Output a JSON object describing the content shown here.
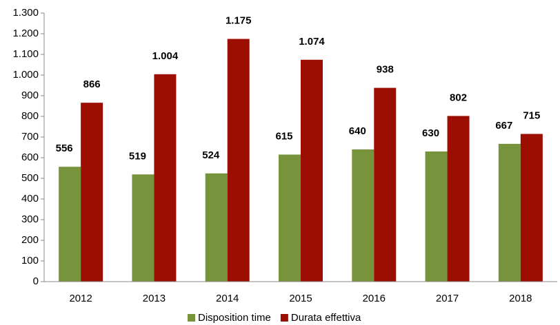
{
  "chart_data": {
    "type": "bar",
    "categories": [
      "2012",
      "2013",
      "2014",
      "2015",
      "2016",
      "2017",
      "2018"
    ],
    "series": [
      {
        "name": "Disposition time",
        "color": "#77933c",
        "values": [
          556,
          519,
          524,
          615,
          640,
          630,
          667
        ]
      },
      {
        "name": "Durata effettiva",
        "color": "#9c0d02",
        "values": [
          866,
          1004,
          1175,
          1074,
          938,
          802,
          715
        ],
        "value_labels": [
          "866",
          "1.004",
          "1.175",
          "1.074",
          "938",
          "802",
          "715"
        ]
      }
    ],
    "ylim": [
      0,
      1300
    ],
    "yticks": [
      0,
      100,
      200,
      300,
      400,
      500,
      600,
      700,
      800,
      900,
      {
        "value": 1000,
        "label": "1.000"
      },
      {
        "value": 1100,
        "label": "1.100"
      },
      {
        "value": 1200,
        "label": "1.200"
      },
      {
        "value": 1300,
        "label": "1.300"
      }
    ],
    "grid": false,
    "legend": "bottom"
  }
}
